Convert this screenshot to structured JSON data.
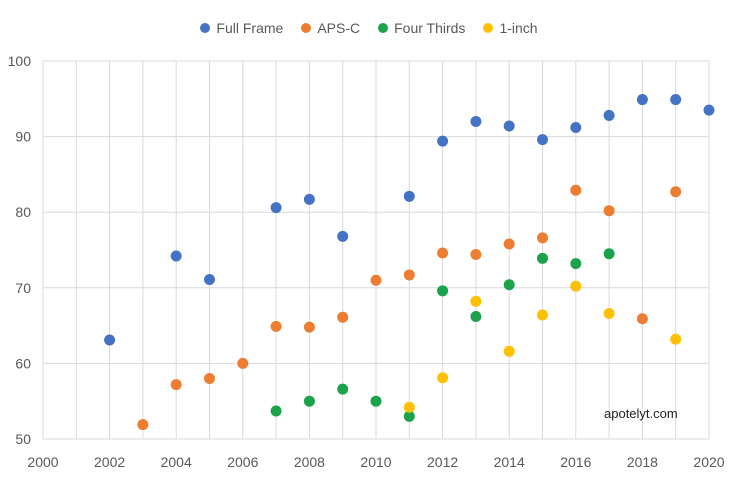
{
  "chart_data": {
    "type": "scatter",
    "title": "",
    "xlabel": "",
    "ylabel": "",
    "xlim": [
      2000,
      2020
    ],
    "ylim": [
      50,
      100
    ],
    "x_ticks": [
      2000,
      2002,
      2004,
      2006,
      2008,
      2010,
      2012,
      2014,
      2016,
      2018,
      2020
    ],
    "y_ticks": [
      50,
      60,
      70,
      80,
      90,
      100
    ],
    "grid": true,
    "legend_position": "top-center",
    "series": [
      {
        "name": "Full Frame",
        "color": "#4472C4",
        "points": [
          [
            2002,
            63.1
          ],
          [
            2004,
            74.2
          ],
          [
            2005,
            71.1
          ],
          [
            2007,
            80.6
          ],
          [
            2008,
            81.7
          ],
          [
            2009,
            76.8
          ],
          [
            2011,
            82.1
          ],
          [
            2012,
            89.4
          ],
          [
            2013,
            92.0
          ],
          [
            2014,
            91.4
          ],
          [
            2015,
            89.6
          ],
          [
            2016,
            91.2
          ],
          [
            2017,
            92.8
          ],
          [
            2018,
            94.9
          ],
          [
            2019,
            94.9
          ],
          [
            2020,
            93.5
          ]
        ]
      },
      {
        "name": "APS-C",
        "color": "#ED7D31",
        "points": [
          [
            2003,
            51.9
          ],
          [
            2004,
            57.2
          ],
          [
            2005,
            58.0
          ],
          [
            2006,
            60.0
          ],
          [
            2007,
            64.9
          ],
          [
            2008,
            64.8
          ],
          [
            2009,
            66.1
          ],
          [
            2010,
            71.0
          ],
          [
            2011,
            71.7
          ],
          [
            2012,
            74.6
          ],
          [
            2013,
            74.4
          ],
          [
            2014,
            75.8
          ],
          [
            2015,
            76.6
          ],
          [
            2016,
            82.9
          ],
          [
            2017,
            80.2
          ],
          [
            2018,
            65.9
          ],
          [
            2019,
            82.7
          ]
        ]
      },
      {
        "name": "Four Thirds",
        "color": "#1AA34A",
        "points": [
          [
            2007,
            53.7
          ],
          [
            2008,
            55.0
          ],
          [
            2009,
            56.6
          ],
          [
            2010,
            55.0
          ],
          [
            2011,
            53.0
          ],
          [
            2012,
            69.6
          ],
          [
            2013,
            66.2
          ],
          [
            2014,
            70.4
          ],
          [
            2015,
            73.9
          ],
          [
            2016,
            73.2
          ],
          [
            2017,
            74.5
          ]
        ]
      },
      {
        "name": "1-inch",
        "color": "#FFC000",
        "points": [
          [
            2011,
            54.2
          ],
          [
            2012,
            58.1
          ],
          [
            2013,
            68.2
          ],
          [
            2014,
            61.6
          ],
          [
            2015,
            66.4
          ],
          [
            2016,
            70.2
          ],
          [
            2017,
            66.6
          ],
          [
            2019,
            63.2
          ]
        ]
      }
    ],
    "annotations": [
      "apotelyt.com"
    ]
  }
}
